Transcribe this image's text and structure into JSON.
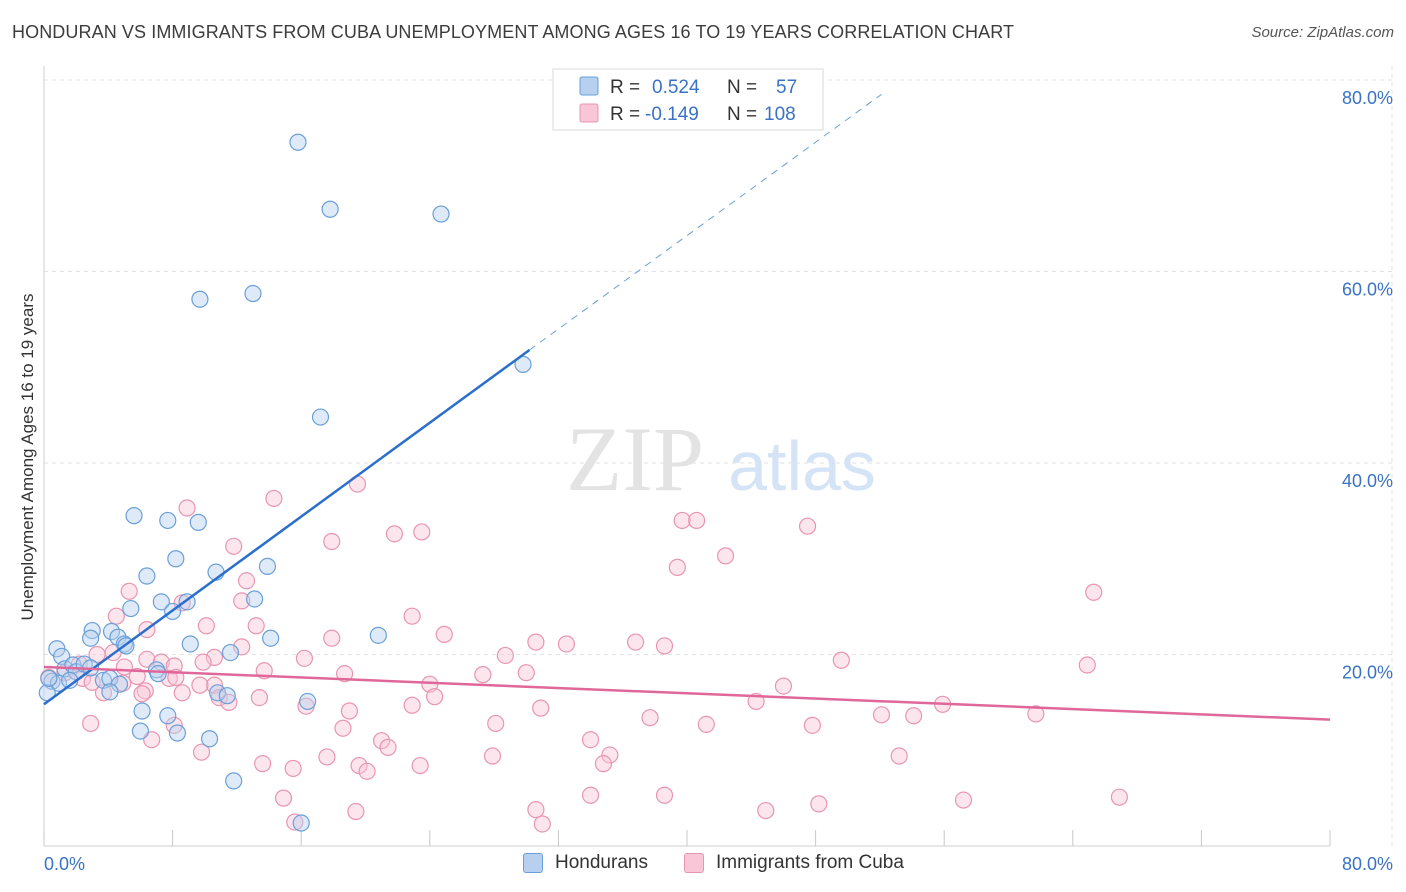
{
  "title": "HONDURAN VS IMMIGRANTS FROM CUBA UNEMPLOYMENT AMONG AGES 16 TO 19 YEARS CORRELATION CHART",
  "source": "Source: ZipAtlas.com",
  "watermark": {
    "zip": "ZIP",
    "atlas": "atlas"
  },
  "colors": {
    "blue_fill": "#b8d0f0",
    "blue_stroke": "#6a9fd8",
    "blue_line": "#2a6fcc",
    "pink_fill": "#f8c6d6",
    "pink_stroke": "#e896b0",
    "pink_line": "#e0679a",
    "axis_label": "#3a72c4",
    "grid": "#e2e2e2"
  },
  "legend_top": {
    "rows": [
      {
        "r_label": "R =",
        "r_value": "0.524",
        "n_label": "N =",
        "n_value": "57"
      },
      {
        "r_label": "R =",
        "r_value": "-0.149",
        "n_label": "N =",
        "n_value": "108"
      }
    ]
  },
  "legend_bottom": {
    "series1": "Hondurans",
    "series2": "Immigrants from Cuba"
  },
  "chart_data": {
    "type": "scatter",
    "title": "HONDURAN VS IMMIGRANTS FROM CUBA UNEMPLOYMENT AMONG AGES 16 TO 19 YEARS CORRELATION CHART",
    "xlabel": "",
    "ylabel": "Unemployment Among Ages 16 to 19 years",
    "xlim": [
      0,
      80
    ],
    "ylim": [
      0,
      80
    ],
    "x_tick_labels": [
      "0.0%",
      "80.0%"
    ],
    "y_tick_labels": [
      "80.0%",
      "60.0%",
      "40.0%",
      "20.0%"
    ],
    "y_ticks": [
      80,
      60,
      40,
      20
    ],
    "series": [
      {
        "name": "Hondurans",
        "r": 0.524,
        "n": 57,
        "trend": {
          "x0": 0,
          "y0": 14.8,
          "x1": 30.2,
          "y1": 51.8,
          "dash_to_x": 52.1,
          "dash_to_y": 78.5
        },
        "points": [
          [
            15.8,
            73.5
          ],
          [
            17.8,
            66.5
          ],
          [
            24.7,
            66.0
          ],
          [
            9.7,
            57.1
          ],
          [
            13.0,
            57.7
          ],
          [
            29.8,
            50.3
          ],
          [
            17.2,
            44.8
          ],
          [
            5.6,
            34.5
          ],
          [
            7.7,
            34.0
          ],
          [
            9.6,
            33.8
          ],
          [
            8.2,
            30.0
          ],
          [
            6.4,
            28.2
          ],
          [
            10.7,
            28.6
          ],
          [
            13.9,
            29.2
          ],
          [
            7.3,
            25.5
          ],
          [
            8.9,
            25.5
          ],
          [
            13.1,
            25.8
          ],
          [
            5.4,
            24.8
          ],
          [
            8.0,
            24.5
          ],
          [
            3.0,
            22.5
          ],
          [
            4.2,
            22.4
          ],
          [
            2.9,
            21.7
          ],
          [
            4.6,
            21.8
          ],
          [
            5.0,
            21.1
          ],
          [
            5.1,
            20.9
          ],
          [
            14.1,
            21.7
          ],
          [
            20.8,
            22.0
          ],
          [
            9.1,
            21.1
          ],
          [
            11.6,
            20.2
          ],
          [
            0.8,
            20.6
          ],
          [
            1.1,
            19.8
          ],
          [
            1.3,
            18.5
          ],
          [
            1.8,
            18.9
          ],
          [
            2.0,
            18.2
          ],
          [
            2.5,
            19.0
          ],
          [
            2.9,
            18.6
          ],
          [
            7.0,
            18.4
          ],
          [
            7.1,
            18.0
          ],
          [
            0.5,
            17.2
          ],
          [
            0.9,
            17.0
          ],
          [
            1.6,
            17.3
          ],
          [
            3.7,
            17.3
          ],
          [
            4.1,
            17.5
          ],
          [
            4.7,
            16.9
          ],
          [
            0.2,
            16.0
          ],
          [
            4.1,
            16.1
          ],
          [
            10.8,
            16.0
          ],
          [
            11.4,
            15.7
          ],
          [
            16.4,
            15.1
          ],
          [
            6.1,
            14.1
          ],
          [
            7.7,
            13.6
          ],
          [
            6.0,
            12.0
          ],
          [
            8.3,
            11.8
          ],
          [
            10.3,
            11.2
          ],
          [
            11.8,
            6.8
          ],
          [
            16.0,
            2.4
          ],
          [
            0.3,
            17.5
          ]
        ]
      },
      {
        "name": "Immigrants from Cuba",
        "r": -0.149,
        "n": 108,
        "trend": {
          "x0": 0,
          "y0": 18.7,
          "x1": 80,
          "y1": 13.2
        },
        "points": [
          [
            19.5,
            37.8
          ],
          [
            8.9,
            35.3
          ],
          [
            14.3,
            36.3
          ],
          [
            11.8,
            31.3
          ],
          [
            17.9,
            31.8
          ],
          [
            21.8,
            32.6
          ],
          [
            23.5,
            32.8
          ],
          [
            39.7,
            34.0
          ],
          [
            40.6,
            34.0
          ],
          [
            47.5,
            33.4
          ],
          [
            42.4,
            30.3
          ],
          [
            39.4,
            29.1
          ],
          [
            12.6,
            27.7
          ],
          [
            5.3,
            26.6
          ],
          [
            8.6,
            25.4
          ],
          [
            12.3,
            25.6
          ],
          [
            4.5,
            24.0
          ],
          [
            22.9,
            24.0
          ],
          [
            65.3,
            26.5
          ],
          [
            10.1,
            23.0
          ],
          [
            13.2,
            23.0
          ],
          [
            6.4,
            22.6
          ],
          [
            24.9,
            22.1
          ],
          [
            17.9,
            21.7
          ],
          [
            30.6,
            21.3
          ],
          [
            32.5,
            21.1
          ],
          [
            36.8,
            21.3
          ],
          [
            38.6,
            20.9
          ],
          [
            12.3,
            20.8
          ],
          [
            3.3,
            20.0
          ],
          [
            4.3,
            20.2
          ],
          [
            6.4,
            19.5
          ],
          [
            7.3,
            19.2
          ],
          [
            10.6,
            19.7
          ],
          [
            16.2,
            19.6
          ],
          [
            28.7,
            19.9
          ],
          [
            2.2,
            19.0
          ],
          [
            5.0,
            18.7
          ],
          [
            8.1,
            18.8
          ],
          [
            9.9,
            19.2
          ],
          [
            13.7,
            18.3
          ],
          [
            18.7,
            18.0
          ],
          [
            27.3,
            17.9
          ],
          [
            30.0,
            18.1
          ],
          [
            49.6,
            19.4
          ],
          [
            64.9,
            18.9
          ],
          [
            1.3,
            18.1
          ],
          [
            2.4,
            17.5
          ],
          [
            5.8,
            17.7
          ],
          [
            7.8,
            17.5
          ],
          [
            8.2,
            17.6
          ],
          [
            10.6,
            16.8
          ],
          [
            3.0,
            17.1
          ],
          [
            4.9,
            17.0
          ],
          [
            6.3,
            16.2
          ],
          [
            9.7,
            16.8
          ],
          [
            24.0,
            16.9
          ],
          [
            46.0,
            16.7
          ],
          [
            3.7,
            16.0
          ],
          [
            6.1,
            15.9
          ],
          [
            8.6,
            16.0
          ],
          [
            10.9,
            15.5
          ],
          [
            11.5,
            15.0
          ],
          [
            13.4,
            15.5
          ],
          [
            24.3,
            15.6
          ],
          [
            44.3,
            15.1
          ],
          [
            16.3,
            14.6
          ],
          [
            19.0,
            14.1
          ],
          [
            22.9,
            14.7
          ],
          [
            30.9,
            14.4
          ],
          [
            54.1,
            13.6
          ],
          [
            55.9,
            14.8
          ],
          [
            61.7,
            13.8
          ],
          [
            2.9,
            12.8
          ],
          [
            8.1,
            12.6
          ],
          [
            18.6,
            12.3
          ],
          [
            28.1,
            12.8
          ],
          [
            37.7,
            13.4
          ],
          [
            41.2,
            12.7
          ],
          [
            47.8,
            12.6
          ],
          [
            52.1,
            13.7
          ],
          [
            6.7,
            11.1
          ],
          [
            21.0,
            11.0
          ],
          [
            34.0,
            11.1
          ],
          [
            21.4,
            10.3
          ],
          [
            9.8,
            9.8
          ],
          [
            17.6,
            9.3
          ],
          [
            27.9,
            9.4
          ],
          [
            35.2,
            9.5
          ],
          [
            53.2,
            9.4
          ],
          [
            13.6,
            8.6
          ],
          [
            15.5,
            8.1
          ],
          [
            19.6,
            8.4
          ],
          [
            20.1,
            7.8
          ],
          [
            23.4,
            8.4
          ],
          [
            34.8,
            8.6
          ],
          [
            14.9,
            5.0
          ],
          [
            34.0,
            5.3
          ],
          [
            38.6,
            5.3
          ],
          [
            48.2,
            4.4
          ],
          [
            57.2,
            4.8
          ],
          [
            66.9,
            5.1
          ],
          [
            19.4,
            3.6
          ],
          [
            30.6,
            3.8
          ],
          [
            44.9,
            3.7
          ],
          [
            15.6,
            2.5
          ],
          [
            31.0,
            2.3
          ],
          [
            0.3,
            17.6
          ]
        ]
      }
    ]
  }
}
